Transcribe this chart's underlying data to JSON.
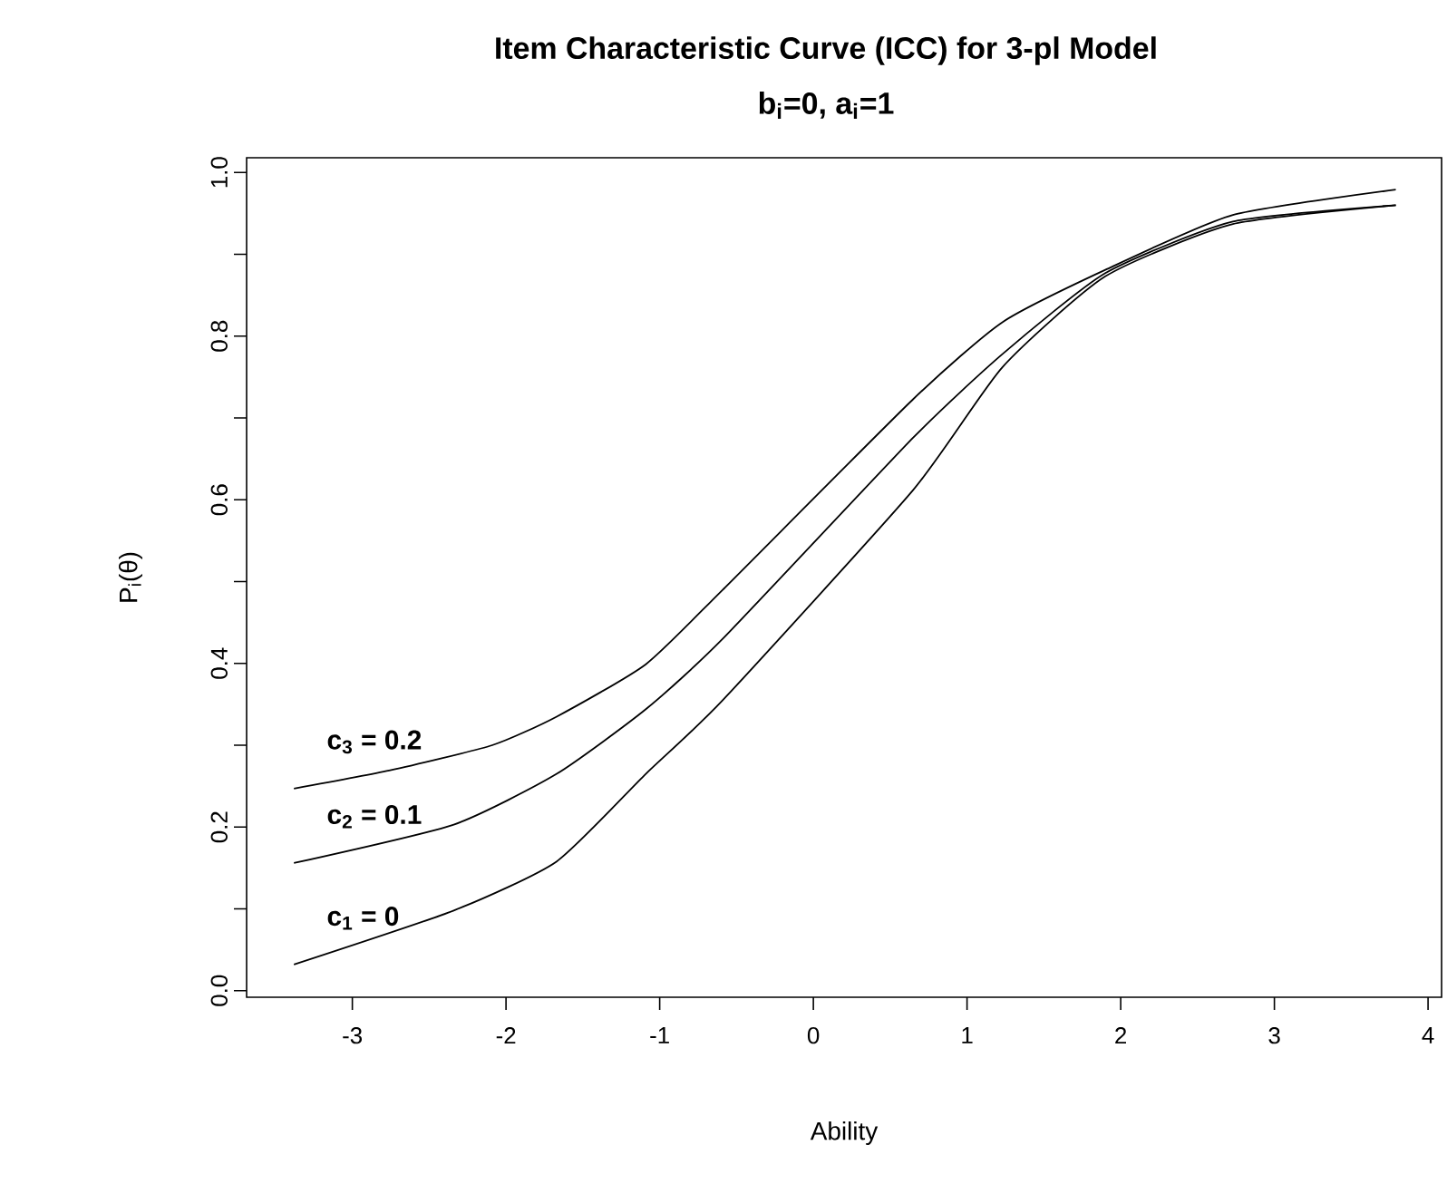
{
  "chart_data": {
    "type": "line",
    "title": "Item Characteristic Curve (ICC) for 3-pl Model",
    "subtitle": "b$_{i}$=0, a$_{i}$=1",
    "xlabel": "Ability",
    "ylabel": "P$_{i}$(θ)",
    "xlim": [
      -3.688,
      4.088
    ],
    "ylim": [
      -0.008,
      1.018
    ],
    "xticks": [
      -3,
      -2,
      -1,
      0,
      1,
      2,
      3,
      4
    ],
    "yticks": [
      {
        "value": 0,
        "label": "0.0"
      },
      {
        "value": 0.1,
        "label": null
      },
      {
        "value": 0.2,
        "label": "0.2"
      },
      {
        "value": 0.3,
        "label": null
      },
      {
        "value": 0.4,
        "label": "0.4"
      },
      {
        "value": 0.5,
        "label": null
      },
      {
        "value": 0.6,
        "label": "0.6"
      },
      {
        "value": 0.7,
        "label": null
      },
      {
        "value": 0.8,
        "label": "0.8"
      },
      {
        "value": 0.9,
        "label": null
      },
      {
        "value": 1.0,
        "label": "1.0"
      }
    ],
    "grid": false,
    "legend": false,
    "line_style": "solid",
    "series": [
      {
        "name": "c$_{1}$ = 0",
        "color": "#000000",
        "x": [
          -3.38,
          -2.34,
          -1.67,
          -1.09,
          -0.59,
          0.65,
          1.23,
          1.9,
          2.73,
          3.79
        ],
        "values": [
          0.032,
          0.098,
          0.158,
          0.265,
          0.355,
          0.612,
          0.762,
          0.873,
          0.937,
          0.96
        ]
      },
      {
        "name": "c$_{2}$ = 0.1",
        "color": "#000000",
        "x": [
          -3.38,
          -2.34,
          -1.67,
          -1.09,
          -0.59,
          0.65,
          1.23,
          1.9,
          2.73,
          3.79
        ],
        "values": [
          0.156,
          0.203,
          0.265,
          0.344,
          0.43,
          0.676,
          0.778,
          0.877,
          0.94,
          0.96
        ]
      },
      {
        "name": "c$_{3}$ = 0.2",
        "color": "#000000",
        "x": [
          -3.38,
          -2.76,
          -2.09,
          -1.67,
          -1.09,
          -0.59,
          0.65,
          1.23,
          1.9,
          2.73,
          3.79
        ],
        "values": [
          0.247,
          0.269,
          0.3,
          0.335,
          0.399,
          0.49,
          0.723,
          0.817,
          0.881,
          0.948,
          0.979
        ]
      }
    ]
  }
}
